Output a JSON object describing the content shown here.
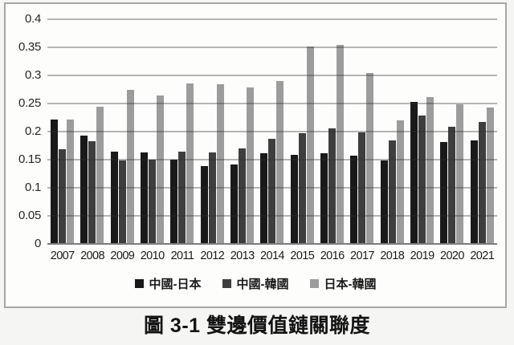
{
  "caption": "圖 3-1 雙邊價值鏈關聯度",
  "colors": {
    "frame_border": "#a6a6a6",
    "frame_background": "#fdfdfc",
    "page_background": "#f5f5f3",
    "gridline": "#a9a9a9",
    "axis_line": "#7d7d7d",
    "text": "#1e1e1e"
  },
  "chart_data": {
    "type": "bar",
    "title": "",
    "xlabel": "",
    "ylabel": "",
    "categories": [
      "2007",
      "2008",
      "2009",
      "2010",
      "2011",
      "2012",
      "2013",
      "2014",
      "2015",
      "2016",
      "2017",
      "2018",
      "2019",
      "2020",
      "2021"
    ],
    "series": [
      {
        "name": "中國-日本",
        "color": "#191919",
        "values": [
          0.222,
          0.193,
          0.164,
          0.163,
          0.15,
          0.138,
          0.142,
          0.161,
          0.159,
          0.161,
          0.157,
          0.148,
          0.253,
          0.182,
          0.184
        ]
      },
      {
        "name": "中國-韓國",
        "color": "#3e3e3e",
        "values": [
          0.168,
          0.183,
          0.148,
          0.15,
          0.165,
          0.163,
          0.17,
          0.187,
          0.197,
          0.206,
          0.198,
          0.185,
          0.229,
          0.209,
          0.217
        ]
      },
      {
        "name": "日本-韓國",
        "color": "#9c9c9c",
        "values": [
          0.221,
          0.244,
          0.274,
          0.265,
          0.286,
          0.285,
          0.278,
          0.29,
          0.352,
          0.355,
          0.304,
          0.22,
          0.262,
          0.248,
          0.243
        ]
      }
    ],
    "ylim": [
      0,
      0.4
    ],
    "ytick_step": 0.05,
    "ytick_labels": [
      "0.4",
      "0.35",
      "0.3",
      "0.25",
      "0.2",
      "0.15",
      "0.1",
      "0.05",
      "0"
    ],
    "grid": "horizontal",
    "legend_position": "bottom-inside"
  }
}
